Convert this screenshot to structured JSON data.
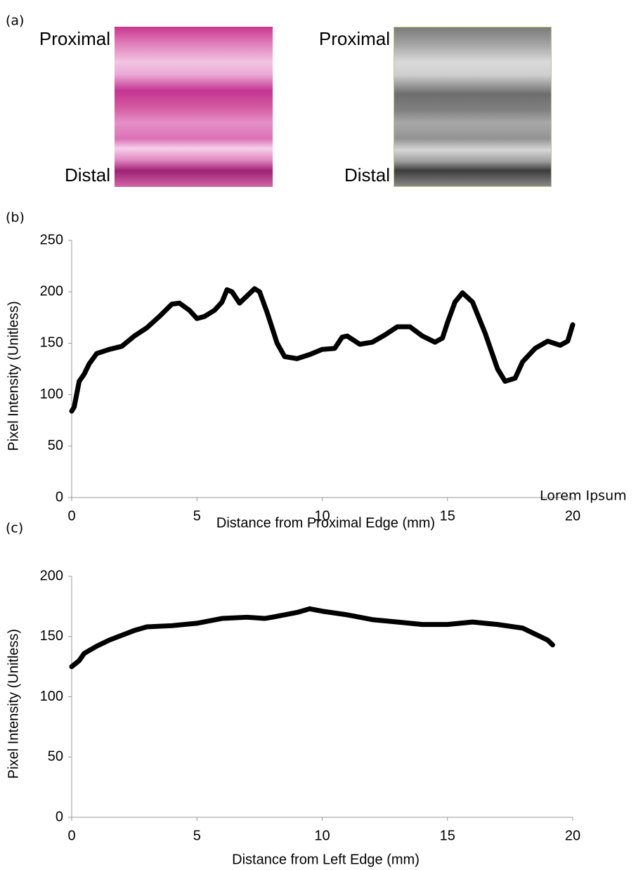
{
  "panel_a": {
    "label": "(a)",
    "images": [
      {
        "top_label": "Proximal",
        "bottom_label": "Distal"
      },
      {
        "top_label": "Proximal",
        "bottom_label": "Distal"
      }
    ]
  },
  "chart_data": [
    {
      "type": "line",
      "panel_label": "(b)",
      "xlabel": "Distance from Proximal Edge (mm)",
      "ylabel": "Pixel Intensity (Unitless)",
      "annotation": "Lorem Ipsum",
      "color": "#000000",
      "x": [
        0,
        0.1,
        0.3,
        0.5,
        0.7,
        1,
        1.5,
        2,
        2.5,
        3,
        3.5,
        4,
        4.3,
        4.7,
        5,
        5.3,
        5.7,
        6,
        6.2,
        6.4,
        6.7,
        7,
        7.3,
        7.5,
        7.8,
        8.2,
        8.5,
        9,
        9.5,
        10,
        10.5,
        10.8,
        11,
        11.5,
        12,
        12.5,
        13,
        13.5,
        14,
        14.5,
        14.8,
        15,
        15.3,
        15.6,
        16,
        16.5,
        17,
        17.3,
        17.7,
        18,
        18.5,
        19,
        19.5,
        19.8,
        20
      ],
      "values": [
        84,
        88,
        113,
        120,
        130,
        140,
        144,
        147,
        157,
        165,
        176,
        188,
        189,
        182,
        174,
        176,
        182,
        190,
        202,
        200,
        189,
        196,
        203,
        200,
        180,
        150,
        137,
        135,
        139,
        144,
        145,
        156,
        157,
        149,
        151,
        158,
        166,
        166,
        157,
        151,
        155,
        170,
        190,
        199,
        190,
        160,
        125,
        113,
        116,
        132,
        145,
        152,
        148,
        152,
        168
      ],
      "xlim": [
        0,
        20
      ],
      "xticks": [
        0,
        5,
        10,
        15,
        20
      ],
      "ylim": [
        0,
        250
      ],
      "yticks": [
        0,
        50,
        100,
        150,
        200,
        250
      ]
    },
    {
      "type": "line",
      "panel_label": "(c)",
      "xlabel": "Distance from Left Edge (mm)",
      "ylabel": "Pixel Intensity (Unitless)",
      "color": "#000000",
      "x": [
        0,
        0.3,
        0.5,
        1,
        1.5,
        2,
        2.5,
        3,
        4,
        5,
        6,
        7,
        7.7,
        8,
        9,
        9.5,
        10,
        11,
        12,
        13,
        14,
        15,
        16,
        17,
        18,
        18.5,
        19,
        19.2
      ],
      "values": [
        125,
        130,
        136,
        142,
        147,
        151,
        155,
        158,
        159,
        161,
        165,
        166,
        165,
        166,
        170,
        173,
        171,
        168,
        164,
        162,
        160,
        160,
        162,
        160,
        157,
        152,
        147,
        143
      ],
      "xlim": [
        0,
        20
      ],
      "xticks": [
        0,
        5,
        10,
        15,
        20
      ],
      "ylim": [
        0,
        200
      ],
      "yticks": [
        0,
        50,
        100,
        150,
        200
      ]
    }
  ]
}
